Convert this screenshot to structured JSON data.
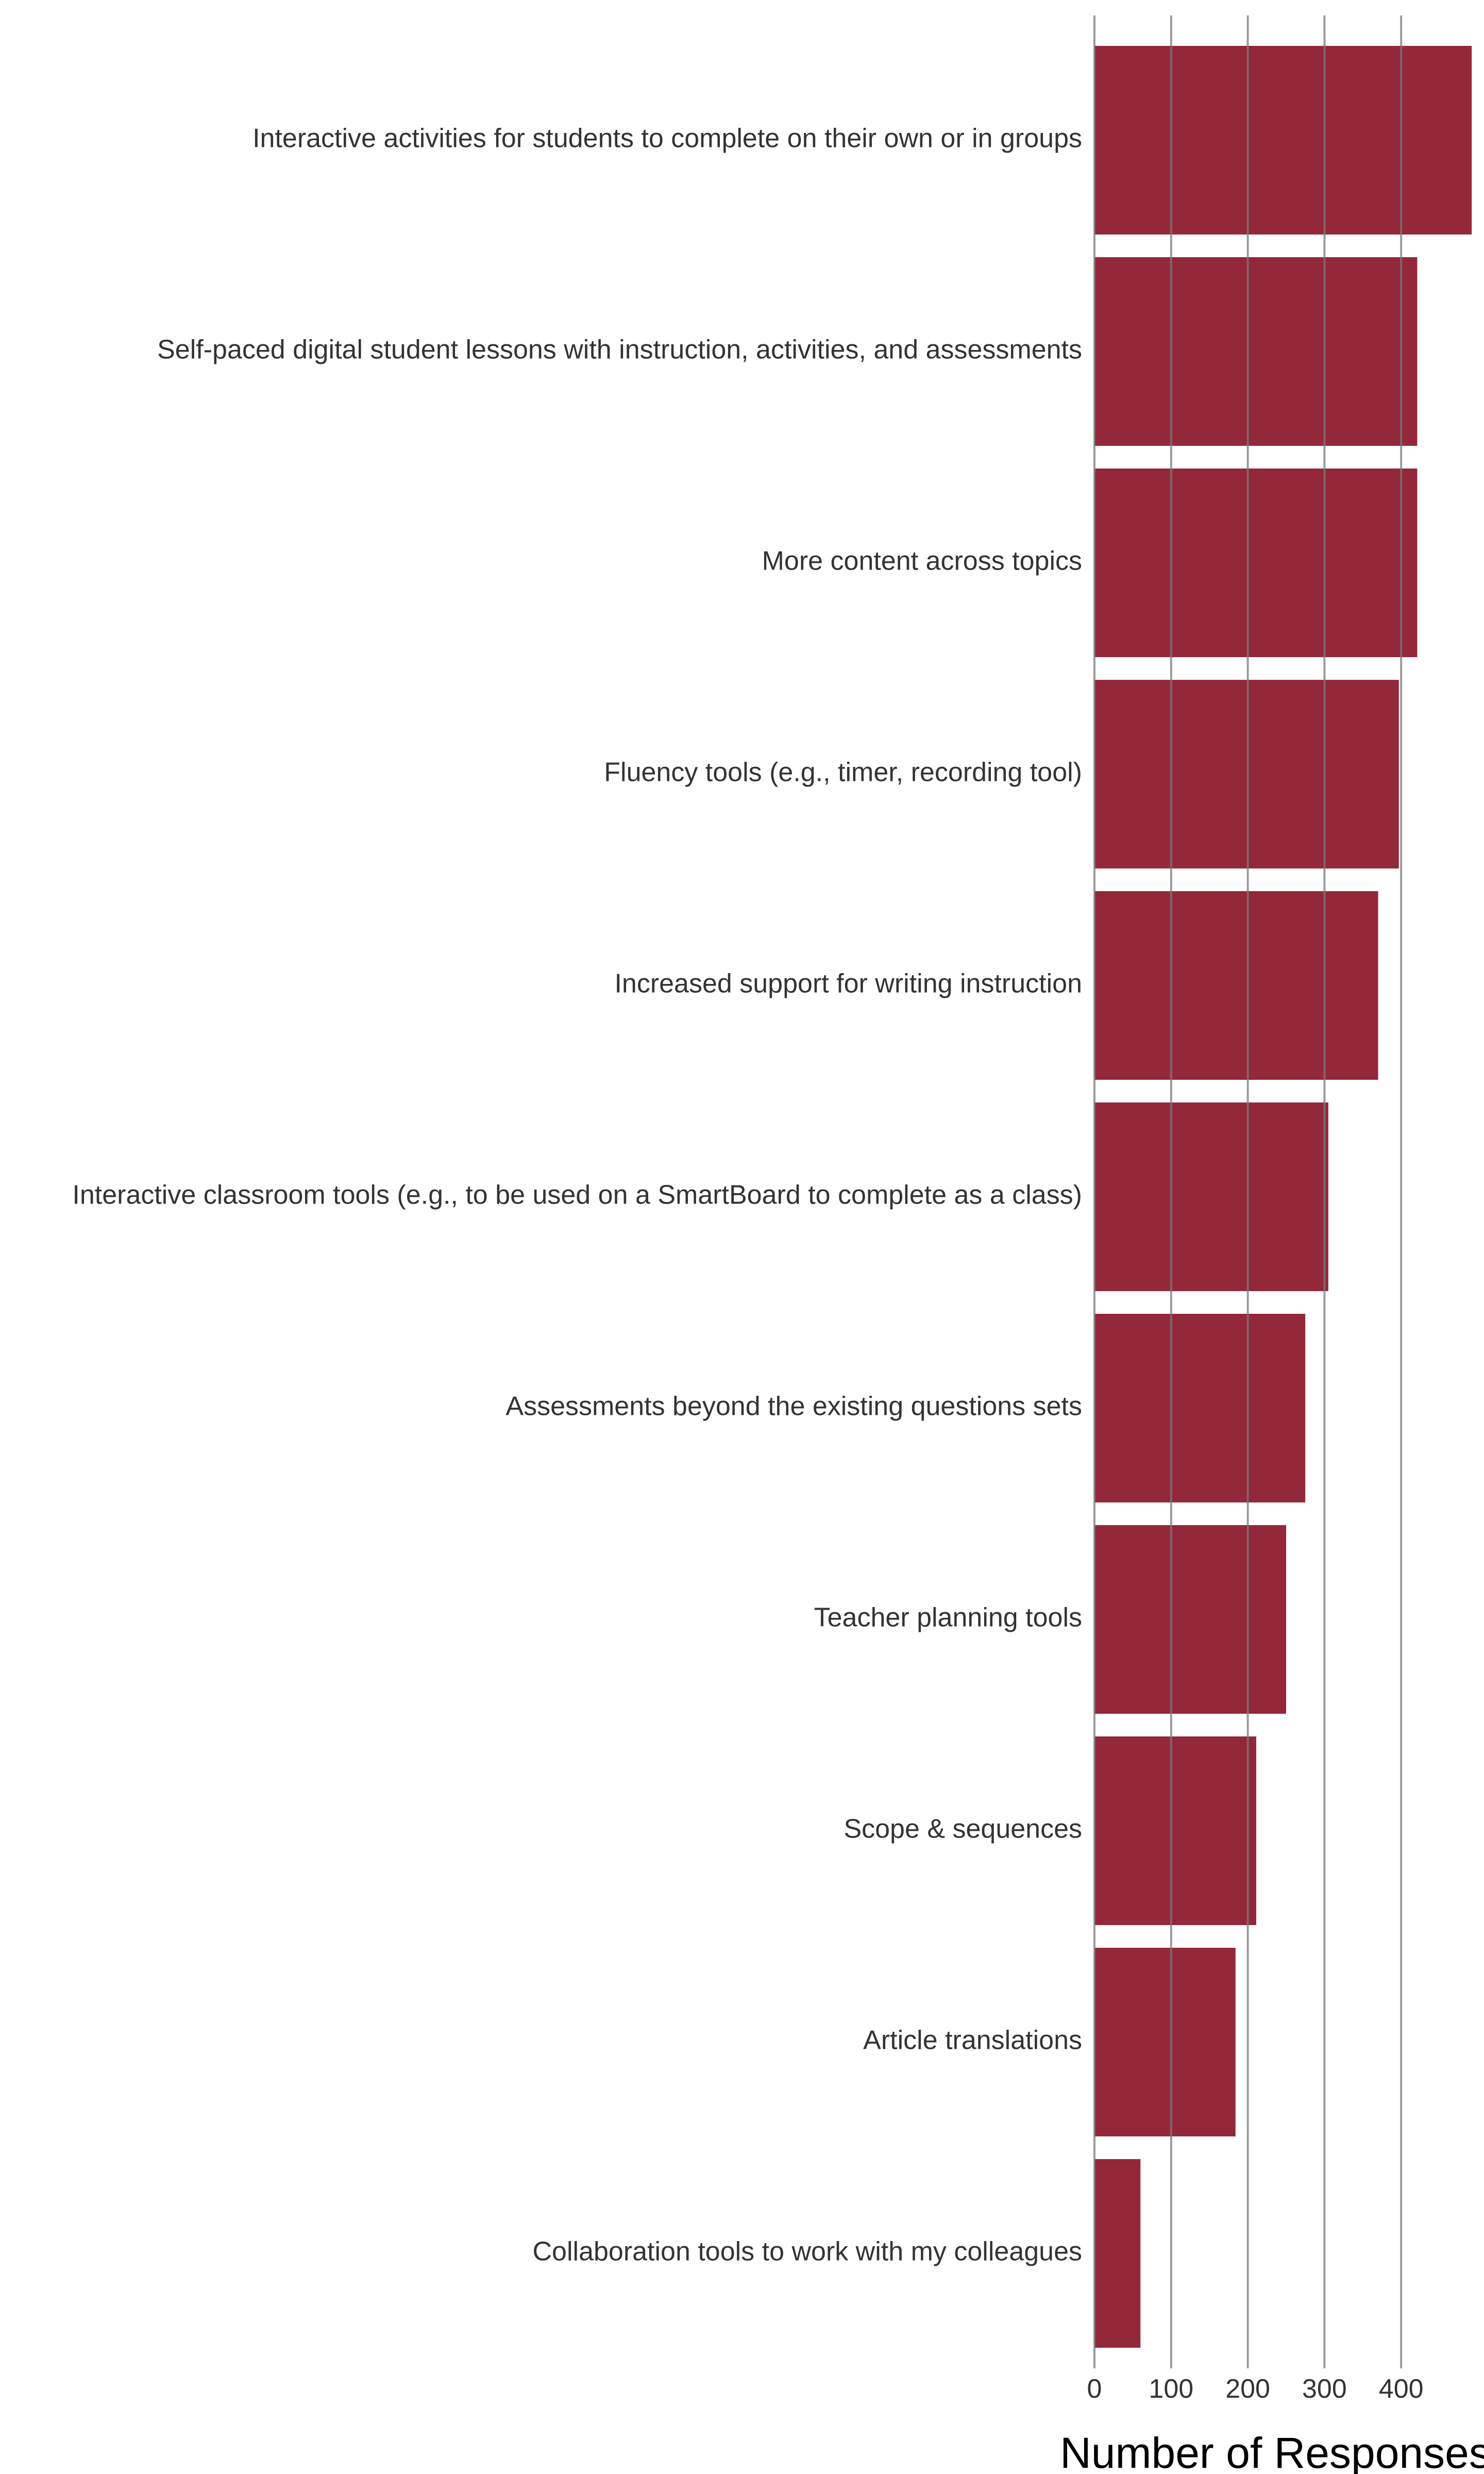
{
  "chart_data": {
    "type": "bar",
    "orientation": "horizontal",
    "title": "",
    "xlabel": "Number of Responses",
    "ylabel": "",
    "categories": [
      "Interactive activities for students to complete on their own or in groups",
      "Self-paced digital student lessons with instruction, activities, and assessments",
      "More content across topics",
      "Fluency tools (e.g., timer, recording tool)",
      "Increased support for writing instruction",
      "Interactive classroom tools (e.g., to be used on a SmartBoard to complete as a class)",
      "Assessments beyond the existing questions sets",
      "Teacher planning tools",
      "Scope & sequences",
      "Article translations",
      "Collaboration tools to work with my colleagues"
    ],
    "values": [
      492,
      421,
      421,
      397,
      370,
      305,
      275,
      250,
      211,
      184,
      60
    ],
    "xlim": [
      0,
      515
    ],
    "xticks": [
      0,
      100,
      200,
      300,
      400
    ],
    "xtick_labels": [
      "0",
      "100",
      "200",
      "300",
      "400"
    ],
    "grid": "vertical",
    "bar_color": "#93283b",
    "grid_color": "#7a7a7a"
  }
}
